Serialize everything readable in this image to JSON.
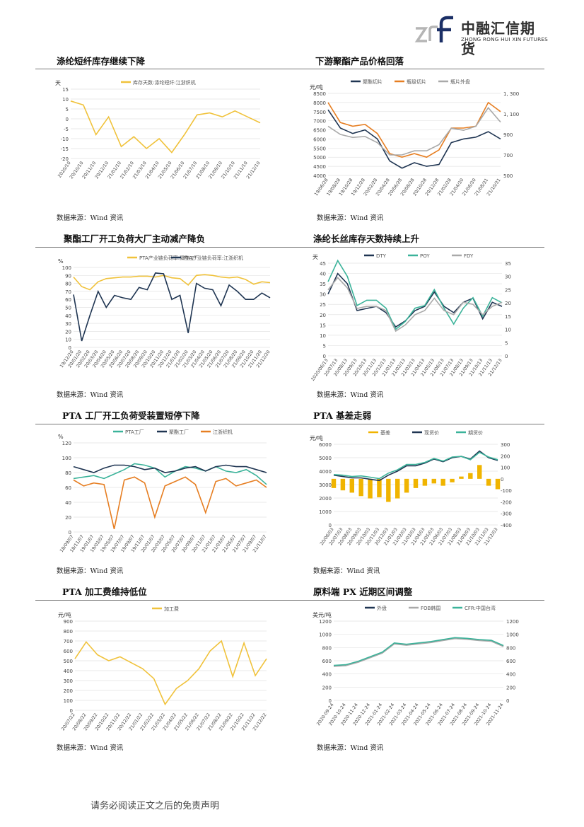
{
  "header": {
    "logo_cn": "中融汇信期货",
    "logo_en": "ZHONG RONG HUI XIN FUTURES"
  },
  "sections": [
    {
      "title": "涤纶短纤库存继续下降",
      "source": "数据来源：Wind 资讯"
    },
    {
      "title": "下游聚酯产品价格回落",
      "source": "数据来源：Wind 资讯"
    },
    {
      "title": "聚酯工厂开工负荷大厂主动减产降负",
      "source": "数据来源：Wind 资讯"
    },
    {
      "title": "涤纶长丝库存天数持续上升",
      "source": "数据来源：Wind 资讯"
    },
    {
      "title": "PTA 工厂开工负荷受装置短停下降",
      "source": "数据来源：Wind 资讯"
    },
    {
      "title": "PTA 基差走弱",
      "source": "数据来源：Wind 资讯"
    },
    {
      "title": "PTA 加工费维持低位",
      "source": "数据来源：Wind 资讯"
    },
    {
      "title": "原料端 PX 近期区间调整",
      "source": "数据来源：Wind 资讯"
    }
  ],
  "footer": {
    "disclaimer": "请务必阅读正文之后的免责声明"
  },
  "chart_data": [
    {
      "type": "line",
      "unit_label": "天",
      "ylim": [
        -20,
        15
      ],
      "yticks": [
        "15",
        "10",
        "5",
        "0",
        "-5",
        "-10",
        "-15",
        "-20"
      ],
      "categories": [
        "2020/10",
        "20/10/10",
        "20/11/10",
        "20/12/10",
        "21/01/10",
        "21/02/10",
        "21/03/10",
        "21/04/10",
        "21/05/10",
        "21/06/10",
        "21/07/10",
        "21/08/10",
        "21/09/10",
        "21/10/10",
        "21/11/10",
        "21/12/10"
      ],
      "series": [
        {
          "name": "库存天数:涤纶短纤:江浙织机",
          "color": "#f0c23b",
          "values": [
            9,
            7,
            -8,
            1,
            -14,
            -9,
            -15,
            -10,
            -17,
            -8,
            2,
            3,
            1,
            4,
            1,
            -2
          ]
        }
      ]
    },
    {
      "type": "line",
      "unit_label": "元/吨",
      "ylim": [
        4000,
        8500
      ],
      "y2lim": [
        500,
        1300
      ],
      "yticks": [
        "8500",
        "8000",
        "7500",
        "7000",
        "6500",
        "6000",
        "5500",
        "5000",
        "4500",
        "4000"
      ],
      "y2ticks": [
        "1, 300",
        "1, 100",
        "900",
        "700",
        "500"
      ],
      "categories": [
        "19/06/28",
        "19/08/28",
        "19/10/28",
        "19/12/28",
        "20/02/28",
        "20/04/28",
        "20/06/28",
        "20/08/28",
        "20/10/28",
        "20/12/28",
        "21/02/28",
        "21/04/30",
        "21/06/30",
        "21/08/31",
        "21/10/31"
      ],
      "series": [
        {
          "name": "聚酯切片",
          "color": "#1f3552",
          "values": [
            7600,
            6600,
            6300,
            6500,
            6000,
            4800,
            4400,
            4700,
            4500,
            4600,
            5800,
            6000,
            6100,
            6400,
            6000
          ]
        },
        {
          "name": "瓶级切片",
          "color": "#e67e22",
          "values": [
            8000,
            6900,
            6700,
            6800,
            6300,
            5200,
            5000,
            5200,
            5000,
            5400,
            6600,
            6600,
            6700,
            8000,
            7500
          ]
        },
        {
          "name": "瓶片外盘",
          "color": "#a9a9a9",
          "values": [
            980,
            900,
            870,
            880,
            820,
            700,
            700,
            740,
            740,
            800,
            960,
            940,
            980,
            1160,
            1020
          ]
        }
      ]
    },
    {
      "type": "line",
      "unit_label": "%",
      "ylim": [
        0,
        100
      ],
      "yticks": [
        "100",
        "90",
        "80",
        "70",
        "60",
        "50",
        "40",
        "30",
        "20",
        "10",
        "0"
      ],
      "categories": [
        "19/12/20",
        "20/01/20",
        "20/02/20",
        "20/03/20",
        "20/04/20",
        "20/05/20",
        "20/06/20",
        "20/07/20",
        "20/08/20",
        "20/09/20",
        "20/10/20",
        "20/11/20",
        "20/12/20",
        "21/01/20",
        "21/02/20",
        "21/03/20",
        "21/04/20",
        "21/05/20",
        "21/06/20",
        "21/07/20",
        "21/08/20",
        "21/09/20",
        "21/10/20",
        "21/11/20",
        "21/12/20"
      ],
      "series": [
        {
          "name": "PTA产业链负荷率:聚酯工厂",
          "color": "#f0c23b",
          "values": [
            88,
            76,
            72,
            82,
            86,
            87,
            88,
            88,
            89,
            89,
            88,
            90,
            87,
            86,
            78,
            90,
            91,
            90,
            88,
            87,
            88,
            85,
            79,
            82,
            81
          ]
        },
        {
          "name": "PTA产业链负荷率:江浙织机",
          "color": "#1f3552",
          "values": [
            66,
            8,
            40,
            70,
            50,
            65,
            62,
            60,
            75,
            72,
            93,
            92,
            60,
            65,
            18,
            80,
            74,
            72,
            52,
            78,
            70,
            60,
            60,
            68,
            62
          ]
        }
      ]
    },
    {
      "type": "line",
      "unit_label": "天",
      "ylim": [
        0,
        45
      ],
      "y2lim": [
        0,
        35
      ],
      "yticks": [
        "45",
        "40",
        "35",
        "30",
        "25",
        "20",
        "15",
        "10",
        "5",
        "0"
      ],
      "y2ticks": [
        "35",
        "30",
        "25",
        "20",
        "15",
        "10",
        "5",
        "0"
      ],
      "categories": [
        "2020/06/13",
        "20/07/13",
        "20/08/13",
        "20/09/13",
        "20/10/13",
        "20/11/13",
        "20/12/13",
        "21/01/13",
        "21/02/13",
        "21/03/13",
        "21/04/13",
        "21/05/13",
        "21/06/13",
        "21/07/13",
        "21/08/13",
        "21/09/13",
        "21/10/13",
        "21/11/13",
        "21/12/13"
      ],
      "series": [
        {
          "name": "DTY",
          "color": "#1f3552",
          "values": [
            30,
            40,
            35,
            22,
            23,
            24,
            21,
            14,
            17,
            22,
            24,
            31,
            24,
            21,
            26,
            28,
            18,
            26,
            24
          ]
        },
        {
          "name": "POY",
          "color": "#3bb39a",
          "values": [
            28,
            36,
            30,
            19,
            21,
            21,
            18,
            10,
            13,
            18,
            19,
            25,
            18,
            12,
            18,
            22,
            15,
            22,
            20
          ]
        },
        {
          "name": "FDY",
          "color": "#a9a9a9",
          "values": [
            32,
            38,
            33,
            23,
            24,
            24,
            22,
            12,
            15,
            20,
            22,
            28,
            22,
            20,
            26,
            25,
            20,
            24,
            26
          ]
        }
      ]
    },
    {
      "type": "line",
      "unit_label": "%",
      "ylim": [
        0,
        120
      ],
      "yticks": [
        "120",
        "100",
        "80",
        "60",
        "40",
        "20",
        "0"
      ],
      "categories": [
        "18/09/07",
        "18/11/07",
        "19/01/07",
        "19/03/07",
        "19/05/07",
        "19/07/07",
        "19/09/07",
        "19/11/07",
        "20/01/07",
        "20/03/07",
        "20/05/07",
        "20/07/07",
        "20/09/07",
        "20/11/07",
        "21/01/07",
        "21/03/07",
        "21/05/07",
        "21/07/07",
        "21/09/07",
        "21/11/07"
      ],
      "series": [
        {
          "name": "PTA工厂",
          "color": "#3bb39a",
          "values": [
            72,
            74,
            76,
            72,
            78,
            84,
            92,
            90,
            86,
            74,
            82,
            88,
            86,
            82,
            88,
            82,
            80,
            84,
            76,
            64
          ]
        },
        {
          "name": "聚酯工厂",
          "color": "#1f3552",
          "values": [
            88,
            84,
            80,
            86,
            90,
            90,
            88,
            84,
            86,
            80,
            82,
            86,
            88,
            82,
            88,
            90,
            88,
            88,
            84,
            80
          ]
        },
        {
          "name": "江浙织机",
          "color": "#e67e22",
          "values": [
            70,
            62,
            66,
            64,
            4,
            70,
            74,
            66,
            20,
            62,
            68,
            74,
            64,
            26,
            68,
            72,
            62,
            66,
            70,
            60
          ]
        }
      ]
    },
    {
      "type": "line",
      "unit_label": "元/吨",
      "ylim": [
        0,
        6000
      ],
      "y2lim": [
        -400,
        300
      ],
      "yticks": [
        "6000",
        "5000",
        "4000",
        "3000",
        "2000",
        "1000",
        "0"
      ],
      "y2ticks": [
        "300",
        "200",
        "100",
        "0",
        "-100",
        "-200",
        "-300",
        "-400"
      ],
      "categories": [
        "20/06/03",
        "20/07/03",
        "20/08/03",
        "20/09/03",
        "20/10/03",
        "20/11/03",
        "20/12/03",
        "21/01/03",
        "21/02/03",
        "21/03/03",
        "21/04/03",
        "21/05/03",
        "21/06/03",
        "21/07/03",
        "21/08/03",
        "21/09/03",
        "21/10/03",
        "21/11/03",
        "21/12/03"
      ],
      "series": [
        {
          "name": "基差",
          "color": "#f0b400",
          "values": [
            -80,
            -100,
            -120,
            -150,
            -170,
            -160,
            -200,
            -170,
            -120,
            -80,
            -60,
            -40,
            -60,
            -30,
            20,
            50,
            120,
            -60,
            -90
          ]
        },
        {
          "name": "现货价",
          "color": "#1f3552",
          "values": [
            3700,
            3600,
            3500,
            3500,
            3400,
            3300,
            3700,
            4000,
            4400,
            4400,
            4600,
            4900,
            4700,
            5000,
            5100,
            4900,
            5500,
            5000,
            4800
          ]
        },
        {
          "name": "期货价",
          "color": "#3bb39a",
          "values": [
            3750,
            3700,
            3600,
            3650,
            3550,
            3450,
            3850,
            4100,
            4500,
            4500,
            4650,
            4950,
            4750,
            5050,
            5100,
            4850,
            5400,
            5050,
            4850
          ]
        }
      ]
    },
    {
      "type": "line",
      "unit_label": "元/吨",
      "ylim": [
        0,
        900
      ],
      "yticks": [
        "900",
        "800",
        "700",
        "600",
        "500",
        "400",
        "300",
        "200",
        "100",
        "0"
      ],
      "categories": [
        "20/07/22",
        "20/08/22",
        "20/09/22",
        "20/10/22",
        "20/11/22",
        "20/12/22",
        "21/01/22",
        "21/02/22",
        "21/03/22",
        "21/04/22",
        "21/05/22",
        "21/06/22",
        "21/07/22",
        "21/08/22",
        "21/09/22",
        "21/10/22",
        "21/11/22",
        "21/12/22"
      ],
      "series": [
        {
          "name": "加工费",
          "color": "#f0c23b",
          "values": [
            520,
            690,
            560,
            500,
            540,
            480,
            420,
            320,
            60,
            220,
            300,
            420,
            600,
            700,
            340,
            680,
            350,
            520
          ]
        }
      ]
    },
    {
      "type": "line",
      "unit_label": "美元/吨",
      "ylim": [
        0,
        1200
      ],
      "y2lim": [
        0,
        1200
      ],
      "yticks": [
        "1200",
        "1000",
        "800",
        "600",
        "400",
        "200",
        "0"
      ],
      "y2ticks": [
        "1200",
        "1000",
        "800",
        "600",
        "400",
        "200",
        "0"
      ],
      "categories": [
        "2020-09-24",
        "2020-10-24",
        "2020-11-24",
        "2020-12-24",
        "2021-01-24",
        "2021-02-24",
        "2021-03-24",
        "2021-04-24",
        "2021-05-24",
        "2021-06-24",
        "2021-07-24",
        "2021-08-24",
        "2021-09-24",
        "2021-10-24",
        "2021-11-24"
      ],
      "series": [
        {
          "name": "外盘",
          "color": "#1f3552",
          "values": [
            520,
            530,
            580,
            650,
            720,
            860,
            840,
            860,
            880,
            910,
            940,
            930,
            910,
            900,
            820
          ]
        },
        {
          "name": "FOB韩国",
          "color": "#a9a9a9",
          "values": [
            515,
            525,
            575,
            645,
            715,
            855,
            835,
            855,
            875,
            905,
            935,
            925,
            905,
            895,
            815
          ]
        },
        {
          "name": "CFR:中国台湾",
          "color": "#3bb39a",
          "values": [
            530,
            540,
            590,
            660,
            730,
            870,
            850,
            870,
            890,
            920,
            950,
            940,
            920,
            910,
            830
          ]
        }
      ]
    }
  ]
}
